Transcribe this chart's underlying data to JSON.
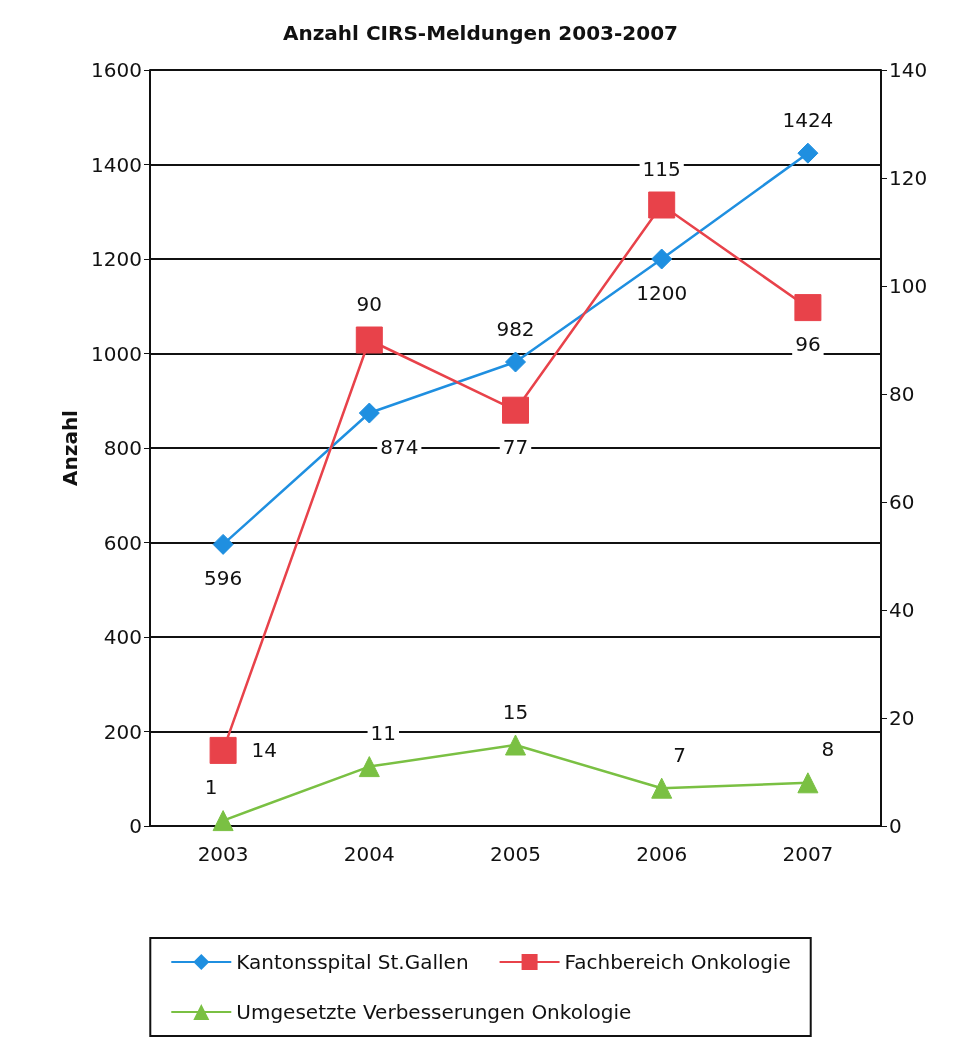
{
  "chart_data": {
    "type": "line",
    "title": "Anzahl CIRS-Meldungen 2003-2007",
    "ylabel": "Anzahl",
    "categories": [
      "2003",
      "2004",
      "2005",
      "2006",
      "2007"
    ],
    "series": [
      {
        "name": "Kantonsspital St.Gallen",
        "color": "#1f8fe0",
        "values": [
          596,
          874,
          982,
          1200,
          1424
        ],
        "marker": "diamond"
      },
      {
        "name": "Fachbereich Onkologie",
        "color": "#e8424a",
        "values": [
          14,
          90,
          77,
          115,
          96
        ],
        "marker": "square",
        "axis": "y2"
      },
      {
        "name": "Umgesetzte Verbesserungen Onkologie",
        "color": "#7ac043",
        "values": [
          1,
          11,
          15,
          7,
          8
        ],
        "marker": "triangle",
        "axis": "y2"
      }
    ],
    "ylim": [
      0,
      1600
    ],
    "yticks": [
      0,
      200,
      400,
      600,
      800,
      1000,
      1200,
      1400,
      1600
    ],
    "y2lim": [
      0,
      140
    ],
    "y2ticks": [
      0,
      20,
      40,
      60,
      80,
      100,
      120,
      140
    ],
    "grid": "y",
    "legend": "bottom",
    "data_labels": true,
    "line_style": "solid"
  }
}
